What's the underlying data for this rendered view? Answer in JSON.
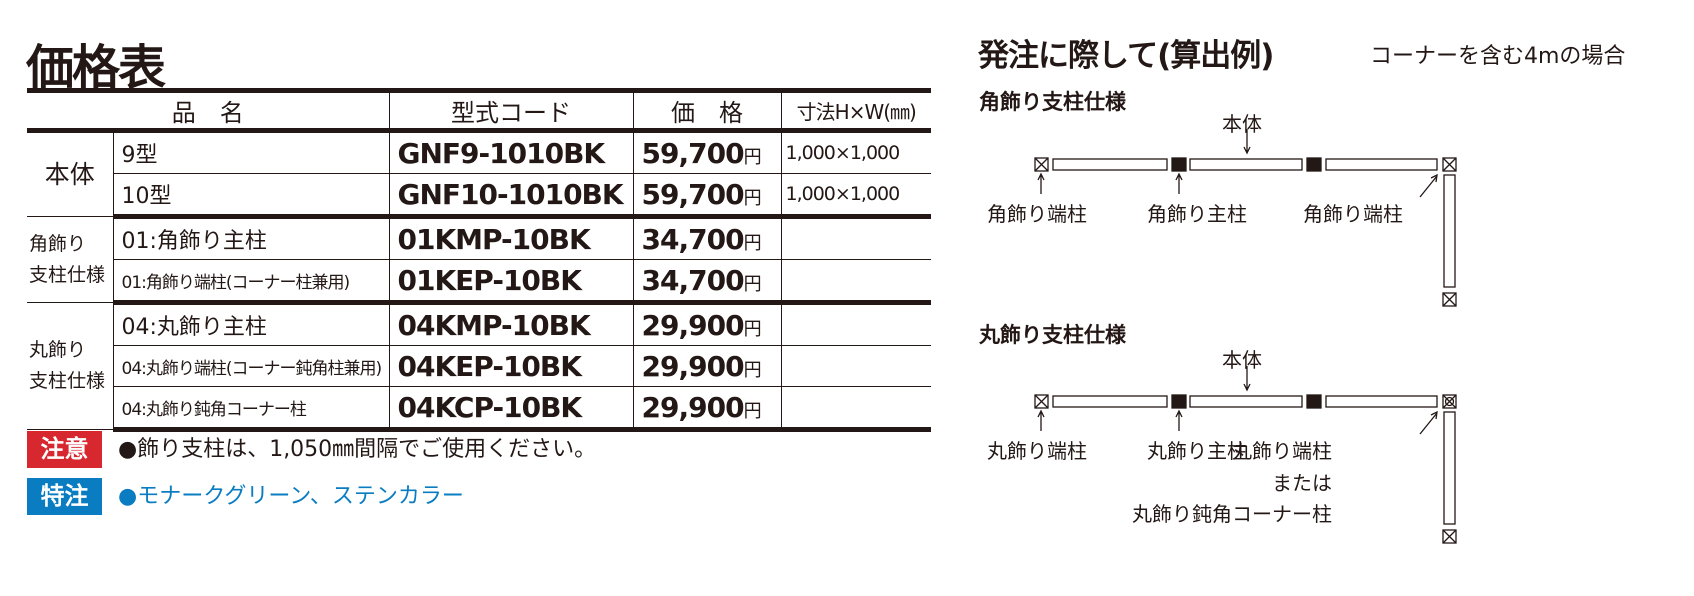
{
  "price_table": {
    "title": "価格表",
    "headers": [
      "品　名",
      "型式コード",
      "価　格",
      "寸法H×W(㎜)"
    ],
    "currency": "円",
    "groups": [
      {
        "category": "本体",
        "rows": [
          {
            "name": "9型",
            "code": "GNF9-1010BK",
            "price": "59,700",
            "size": "1,000×1,000"
          },
          {
            "name": "10型",
            "code": "GNF10-1010BK",
            "price": "59,700",
            "size": "1,000×1,000"
          }
        ]
      },
      {
        "category": "角飾り支柱仕様",
        "category_lines": [
          "角飾り",
          "支柱仕様"
        ],
        "rows": [
          {
            "name": "01:角飾り主柱",
            "code": "01KMP-10BK",
            "price": "34,700",
            "size": ""
          },
          {
            "name": "01:角飾り端柱(コーナー柱兼用)",
            "code": "01KEP-10BK",
            "price": "34,700",
            "size": ""
          }
        ]
      },
      {
        "category": "丸飾り支柱仕様",
        "category_lines": [
          "丸飾り",
          "支柱仕様"
        ],
        "rows": [
          {
            "name": "04:丸飾り主柱",
            "code": "04KMP-10BK",
            "price": "29,900",
            "size": ""
          },
          {
            "name": "04:丸飾り端柱(コーナー鈍角柱兼用)",
            "code": "04KEP-10BK",
            "price": "29,900",
            "size": ""
          },
          {
            "name": "04:丸飾り鈍角コーナー柱",
            "code": "04KCP-10BK",
            "price": "29,900",
            "size": ""
          }
        ]
      }
    ]
  },
  "notes": [
    {
      "badge": "注意",
      "text": "●飾り支柱は、1,050㎜間隔でご使用ください。",
      "badge_color": "#d7282f",
      "text_color": "#231815"
    },
    {
      "badge": "特注",
      "text": "●モナークグリーン、ステンカラー",
      "badge_color": "#0a7cc1",
      "text_color": "#0a7cc1"
    }
  ],
  "order_example": {
    "title": "発注に際して(算出例)",
    "subtitle": "コーナーを含む4mの場合",
    "diagrams": [
      {
        "heading": "角飾り支柱仕様",
        "body_label": "本体",
        "labels": [
          "角飾り端柱",
          "角飾り主柱",
          "角飾り端柱"
        ]
      },
      {
        "heading": "丸飾り支柱仕様",
        "body_label": "本体",
        "labels": [
          "丸飾り端柱",
          "丸飾り主柱",
          "丸飾り端柱"
        ],
        "extra": [
          "または",
          "丸飾り鈍角コーナー柱"
        ]
      }
    ]
  }
}
